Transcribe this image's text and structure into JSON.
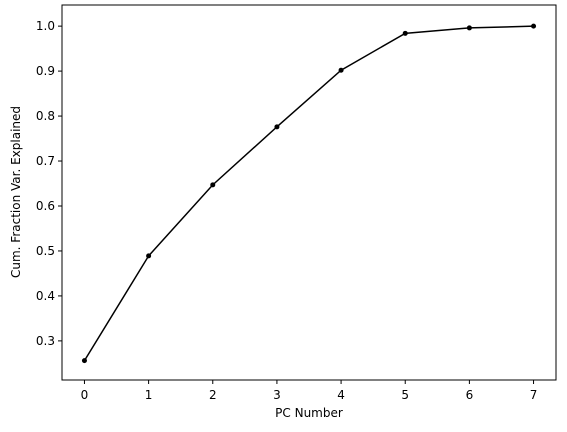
{
  "chart_data": {
    "type": "line",
    "xlabel": "PC Number",
    "ylabel": "Cum. Fraction Var. Explained",
    "x": [
      0,
      1,
      2,
      3,
      4,
      5,
      6,
      7
    ],
    "series": [
      {
        "color": "#000000",
        "values": [
          0.256,
          0.489,
          0.647,
          0.776,
          0.902,
          0.984,
          0.996,
          1.0
        ]
      }
    ],
    "xlim": [
      -0.35,
      7.35
    ],
    "ylim": [
      0.213,
      1.047
    ],
    "xticks": [
      0,
      1,
      2,
      3,
      4,
      5,
      6,
      7
    ],
    "yticks": [
      0.3,
      0.4,
      0.5,
      0.6,
      0.7,
      0.8,
      0.9,
      {
        "value": 1,
        "label": "1.0"
      }
    ],
    "grid": false
  }
}
